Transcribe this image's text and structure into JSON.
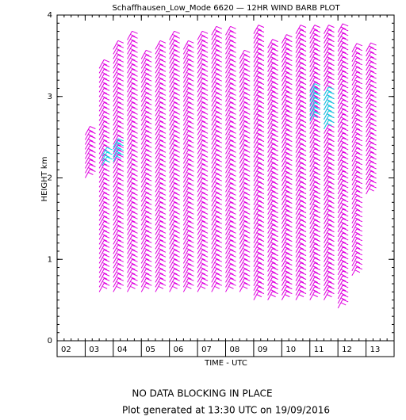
{
  "chart_data": {
    "type": "wind_barb",
    "title": "Schaffhausen_Low_Mode 6620 — 12HR WIND BARB PLOT",
    "x_label": "TIME - UTC",
    "y_label": "HEIGHT km",
    "xlim": [
      2,
      14
    ],
    "xticks": [
      {
        "value": 2,
        "label": "02"
      },
      {
        "value": 3,
        "label": "03"
      },
      {
        "value": 4,
        "label": "04"
      },
      {
        "value": 5,
        "label": "05"
      },
      {
        "value": 6,
        "label": "06"
      },
      {
        "value": 7,
        "label": "07"
      },
      {
        "value": 8,
        "label": "08"
      },
      {
        "value": 9,
        "label": "09"
      },
      {
        "value": 10,
        "label": "10"
      },
      {
        "value": 11,
        "label": "11"
      },
      {
        "value": 12,
        "label": "12"
      },
      {
        "value": 13,
        "label": "13"
      }
    ],
    "ylim": [
      0,
      4
    ],
    "yticks": [
      0,
      1,
      2,
      3,
      4
    ],
    "barbs": {
      "color": "#e000e0",
      "x": [
        3.0,
        3.5,
        4.0,
        4.5,
        5.0,
        5.5,
        6.0,
        6.5,
        7.0,
        7.5,
        8.0,
        8.5,
        9.0,
        9.5,
        10.0,
        10.5,
        11.0,
        11.5,
        12.0,
        12.5,
        13.0
      ],
      "bottom": [
        2.0,
        0.6,
        0.6,
        0.6,
        0.6,
        0.6,
        0.6,
        0.6,
        0.6,
        0.6,
        0.6,
        0.6,
        0.5,
        0.5,
        0.5,
        0.5,
        0.5,
        0.5,
        0.4,
        0.8,
        1.8
      ],
      "top": [
        2.55,
        3.4,
        3.6,
        3.7,
        3.5,
        3.6,
        3.7,
        3.6,
        3.7,
        3.8,
        3.8,
        3.5,
        3.8,
        3.6,
        3.7,
        3.8,
        3.8,
        3.8,
        3.8,
        3.6,
        3.6
      ]
    },
    "flagged": {
      "color": "#00e0e0",
      "x": [
        3.6,
        4.0,
        11.0,
        11.5
      ],
      "bottom": [
        2.15,
        2.2,
        2.7,
        2.6
      ],
      "top": [
        2.3,
        2.4,
        3.1,
        3.05
      ]
    },
    "notes": [
      "NO DATA BLOCKING IN PLACE",
      "Plot generated at 13:30 UTC on 19/09/2016"
    ]
  }
}
